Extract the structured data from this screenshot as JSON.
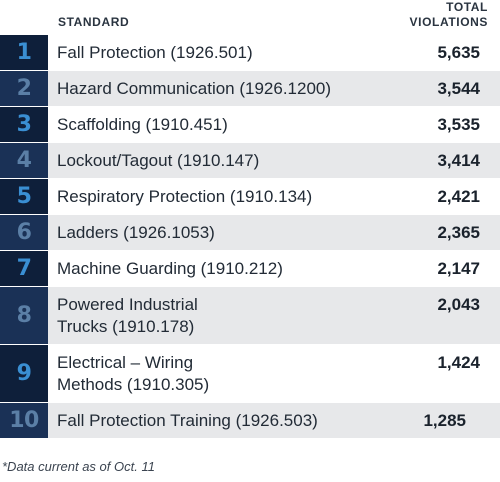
{
  "header": {
    "standard_label": "STANDARD",
    "total_label_line1": "TOTAL",
    "total_label_line2": "VIOLATIONS"
  },
  "colors": {
    "rank_dark_bg": "#0e1f3a",
    "rank_mid_bg": "#1a3156",
    "rank_digit_odd": "#3a8fd3",
    "rank_digit_even": "#5b7fa6",
    "row_gray": "#e7e8ea"
  },
  "chart_data": {
    "type": "table",
    "columns": [
      "STANDARD",
      "TOTAL VIOLATIONS"
    ],
    "rows": [
      {
        "rank": "1",
        "standard": "Fall Protection (1926.501)",
        "violations": 5635,
        "violations_text": "5,635"
      },
      {
        "rank": "2",
        "standard": "Hazard Communication (1926.1200)",
        "violations": 3544,
        "violations_text": "3,544"
      },
      {
        "rank": "3",
        "standard": "Scaffolding (1910.451)",
        "violations": 3535,
        "violations_text": "3,535"
      },
      {
        "rank": "4",
        "standard": "Lockout/Tagout (1910.147)",
        "violations": 3414,
        "violations_text": "3,414"
      },
      {
        "rank": "5",
        "standard": "Respiratory Protection (1910.134)",
        "violations": 2421,
        "violations_text": "2,421"
      },
      {
        "rank": "6",
        "standard": "Ladders (1926.1053)",
        "violations": 2365,
        "violations_text": "2,365"
      },
      {
        "rank": "7",
        "standard": "Machine Guarding (1910.212)",
        "violations": 2147,
        "violations_text": "2,147"
      },
      {
        "rank": "8",
        "standard": "Powered Industrial Trucks (1910.178)",
        "violations": 2043,
        "violations_text": "2,043"
      },
      {
        "rank": "9",
        "standard": "Electrical – Wiring Methods (1910.305)",
        "violations": 1424,
        "violations_text": "1,424"
      },
      {
        "rank": "10",
        "standard": "Fall Protection Training (1926.503)",
        "violations": 1285,
        "violations_text": "1,285"
      }
    ]
  },
  "footnote": "*Data current as of Oct. 11"
}
